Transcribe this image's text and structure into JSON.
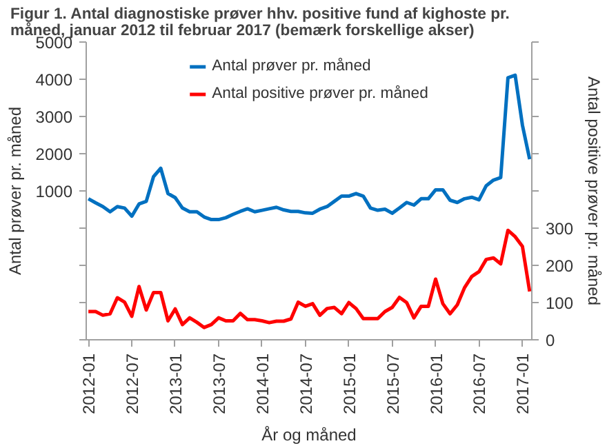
{
  "chart_data": {
    "type": "line",
    "title": "Figur 1. Antal diagnostiske prøver hhv. positive fund af kighoste pr. måned, januar 2012 til februar 2017 (bemærk forskellige akser)",
    "xlabel": "År og måned",
    "ylabel": "Antal prøver pr. måned",
    "y2label": "Antal positive prøver pr. måned",
    "x": [
      "2012-01",
      "2012-02",
      "2012-03",
      "2012-04",
      "2012-05",
      "2012-06",
      "2012-07",
      "2012-08",
      "2012-09",
      "2012-10",
      "2012-11",
      "2012-12",
      "2013-01",
      "2013-02",
      "2013-03",
      "2013-04",
      "2013-05",
      "2013-06",
      "2013-07",
      "2013-08",
      "2013-09",
      "2013-10",
      "2013-11",
      "2013-12",
      "2014-01",
      "2014-02",
      "2014-03",
      "2014-04",
      "2014-05",
      "2014-06",
      "2014-07",
      "2014-08",
      "2014-09",
      "2014-10",
      "2014-11",
      "2014-12",
      "2015-01",
      "2015-02",
      "2015-03",
      "2015-04",
      "2015-05",
      "2015-06",
      "2015-07",
      "2015-08",
      "2015-09",
      "2015-10",
      "2015-11",
      "2015-12",
      "2016-01",
      "2016-02",
      "2016-03",
      "2016-04",
      "2016-05",
      "2016-06",
      "2016-07",
      "2016-08",
      "2016-09",
      "2016-10",
      "2016-11",
      "2016-12",
      "2017-01",
      "2017-02"
    ],
    "series": [
      {
        "name": "Antal prøver pr. måned",
        "color": "#0070c0",
        "values": [
          790,
          680,
          580,
          440,
          580,
          540,
          320,
          650,
          720,
          1380,
          1610,
          930,
          820,
          540,
          440,
          440,
          300,
          230,
          230,
          280,
          370,
          450,
          520,
          440,
          480,
          520,
          560,
          490,
          450,
          450,
          410,
          400,
          510,
          580,
          720,
          860,
          860,
          930,
          860,
          540,
          480,
          510,
          400,
          540,
          690,
          620,
          790,
          790,
          1030,
          1030,
          750,
          690,
          790,
          830,
          760,
          1140,
          1290,
          1360,
          4040,
          4110,
          2770,
          1850
        ]
      },
      {
        "name": "Antal positive prøver pr. måned",
        "color": "#ff0000",
        "axis": "y2",
        "values": [
          76,
          76,
          66,
          70,
          113,
          101,
          63,
          143,
          80,
          127,
          127,
          51,
          83,
          41,
          59,
          47,
          33,
          41,
          59,
          51,
          51,
          71,
          54,
          54,
          51,
          46,
          50,
          50,
          56,
          101,
          90,
          97,
          66,
          84,
          87,
          70,
          100,
          84,
          57,
          57,
          57,
          76,
          87,
          114,
          100,
          59,
          90,
          90,
          163,
          97,
          70,
          94,
          140,
          170,
          183,
          216,
          220,
          204,
          294,
          277,
          251,
          130
        ]
      }
    ],
    "xlim": [
      "2012-01",
      "2017-02"
    ],
    "xticks": [
      "2012-01",
      "2012-07",
      "2013-01",
      "2013-07",
      "2014-01",
      "2014-07",
      "2015-01",
      "2015-07",
      "2016-01",
      "2016-07",
      "2017-01"
    ],
    "ylim": [
      -3000,
      5000
    ],
    "yticks": [
      {
        "value": -3000,
        "label": null
      },
      {
        "value": -2000,
        "label": null
      },
      {
        "value": -1000,
        "label": null
      },
      {
        "value": 0,
        "label": null
      },
      1000,
      2000,
      3000,
      4000,
      5000
    ],
    "y2lim": [
      0,
      800
    ],
    "y2ticks": [
      0,
      100,
      200,
      300,
      {
        "value": 400,
        "label": null
      },
      {
        "value": 500,
        "label": null
      },
      {
        "value": 600,
        "label": null
      },
      {
        "value": 700,
        "label": null
      },
      {
        "value": 800,
        "label": null
      }
    ],
    "legend": "top right",
    "grid": false,
    "line_style": "solid",
    "marker": "none"
  }
}
